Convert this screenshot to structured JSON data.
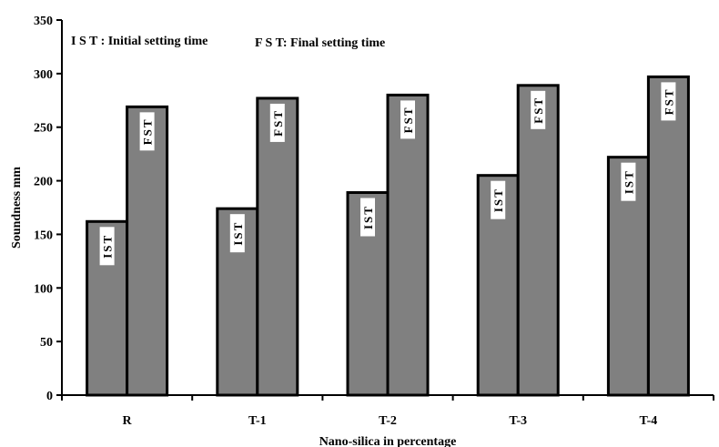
{
  "chart_data": {
    "type": "bar",
    "title": "",
    "xlabel": "Nano-silica in percentage",
    "ylabel": "Soundness  mm",
    "ylim": [
      0,
      350
    ],
    "yticks": [
      0,
      50,
      100,
      150,
      200,
      250,
      300,
      350
    ],
    "categories": [
      "R",
      "T-1",
      "T-2",
      "T-3",
      "T-4"
    ],
    "series": [
      {
        "name": "IST",
        "values": [
          162,
          174,
          189,
          205,
          222
        ]
      },
      {
        "name": "FST",
        "values": [
          269,
          277,
          280,
          289,
          297
        ]
      }
    ],
    "annotations": [
      "I S T : Initial setting time",
      "F S T: Final setting time"
    ],
    "grid": false,
    "colors": {
      "bar_fill": "#808080",
      "bar_stroke": "#000000",
      "label_bg": "#ffffff"
    }
  }
}
